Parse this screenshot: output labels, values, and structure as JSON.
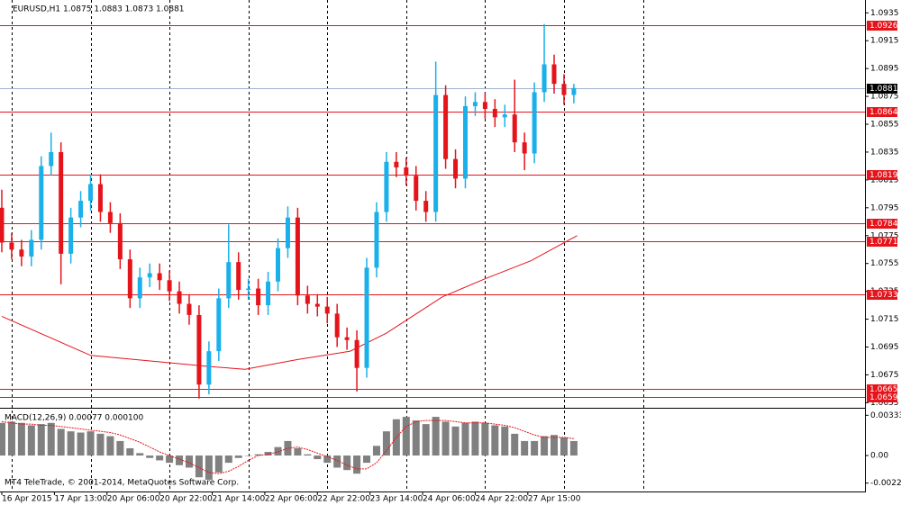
{
  "chart_data": [
    {
      "type": "candlestick",
      "title": "EURUSD,H1  1.0875 1.0883 1.0873 1.0881",
      "up_color": "#1ab0ea",
      "down_color": "#e5141b",
      "x": [
        0,
        3,
        6,
        9,
        12,
        15,
        18,
        21,
        24,
        27,
        30,
        33,
        36,
        39,
        42,
        45,
        48,
        51,
        54,
        57,
        60,
        63,
        66,
        69,
        72,
        75,
        78,
        81,
        84,
        87,
        90,
        93,
        96,
        99,
        102,
        105,
        108,
        111,
        114,
        117,
        120,
        123,
        126,
        129,
        132,
        135,
        138,
        141,
        144,
        147,
        150,
        153,
        156,
        159,
        162,
        165,
        168,
        171,
        174
      ],
      "open": [
        1.0795,
        1.077,
        1.0765,
        1.076,
        1.0772,
        1.0825,
        1.0835,
        1.0762,
        1.0788,
        1.08,
        1.0812,
        1.0792,
        1.0784,
        1.0758,
        1.073,
        1.0745,
        1.0748,
        1.0743,
        1.0735,
        1.0726,
        1.0718,
        1.0668,
        1.0692,
        1.073,
        1.0756,
        1.0736,
        1.0737,
        1.0725,
        1.0742,
        1.0766,
        1.0788,
        1.0732,
        1.0726,
        1.0724,
        1.0719,
        1.0702,
        1.07,
        1.068,
        1.0752,
        1.0792,
        1.0828,
        1.0824,
        1.0818,
        1.08,
        1.0792,
        1.0876,
        1.083,
        1.0816,
        1.0868,
        1.0871,
        1.0866,
        1.086,
        1.0862,
        1.0842,
        1.0834,
        1.0878,
        1.0898,
        1.0884,
        1.0876
      ],
      "high": [
        1.0808,
        1.0777,
        1.0772,
        1.0779,
        1.0832,
        1.0849,
        1.0842,
        1.0795,
        1.0807,
        1.0819,
        1.0819,
        1.0799,
        1.0791,
        1.0765,
        1.0752,
        1.0755,
        1.0755,
        1.075,
        1.0742,
        1.0733,
        1.0725,
        1.0699,
        1.0737,
        1.0783,
        1.0763,
        1.0744,
        1.0744,
        1.0749,
        1.0773,
        1.0796,
        1.0795,
        1.0739,
        1.0733,
        1.0731,
        1.0726,
        1.0709,
        1.0707,
        1.0759,
        1.0799,
        1.0835,
        1.0835,
        1.0831,
        1.0825,
        1.0807,
        1.09,
        1.0883,
        1.0837,
        1.0875,
        1.0878,
        1.0878,
        1.0873,
        1.0869,
        1.0887,
        1.0849,
        1.0885,
        1.0927,
        1.0905,
        1.0891,
        1.0884
      ],
      "low": [
        1.0763,
        1.0758,
        1.0753,
        1.0753,
        1.0765,
        1.0818,
        1.074,
        1.0755,
        1.0781,
        1.0793,
        1.0785,
        1.0777,
        1.0751,
        1.0723,
        1.0723,
        1.0738,
        1.0736,
        1.0728,
        1.0719,
        1.0711,
        1.0658,
        1.0661,
        1.0685,
        1.0723,
        1.0729,
        1.0729,
        1.0718,
        1.0718,
        1.0735,
        1.0759,
        1.0725,
        1.0719,
        1.0717,
        1.0712,
        1.0695,
        1.0693,
        1.0663,
        1.0673,
        1.0745,
        1.0785,
        1.0817,
        1.0811,
        1.0793,
        1.0785,
        1.0785,
        1.0823,
        1.0809,
        1.0809,
        1.0861,
        1.0859,
        1.0853,
        1.0853,
        1.0835,
        1.0822,
        1.0827,
        1.0871,
        1.0877,
        1.0869,
        1.087
      ],
      "close": [
        1.077,
        1.0765,
        1.076,
        1.0772,
        1.0825,
        1.0835,
        1.0762,
        1.0788,
        1.08,
        1.0812,
        1.0792,
        1.0784,
        1.0758,
        1.073,
        1.0745,
        1.0748,
        1.0743,
        1.0735,
        1.0726,
        1.0718,
        1.0668,
        1.0692,
        1.073,
        1.0756,
        1.0736,
        1.0737,
        1.0725,
        1.0742,
        1.0766,
        1.0788,
        1.0732,
        1.0726,
        1.0724,
        1.0719,
        1.0702,
        1.07,
        1.068,
        1.0752,
        1.0792,
        1.0828,
        1.0824,
        1.0818,
        1.08,
        1.0792,
        1.0876,
        1.083,
        1.0816,
        1.0868,
        1.0871,
        1.0866,
        1.086,
        1.0862,
        1.0842,
        1.0834,
        1.0878,
        1.0898,
        1.0884,
        1.0876,
        1.0881
      ],
      "moving_average": {
        "color": "#e5141b",
        "x": [
          0,
          27,
          63,
          74,
          90,
          106,
          117,
          134,
          147,
          161,
          175
        ],
        "values": [
          1.0717,
          1.0689,
          1.0681,
          1.0679,
          1.0686,
          1.0692,
          1.0705,
          1.0731,
          1.0744,
          1.0757,
          1.0775
        ]
      },
      "levels": {
        "color": "#e5141b",
        "values": [
          1.0926,
          1.0864,
          1.0819,
          1.0784,
          1.0771,
          1.0733,
          1.0665,
          1.0659
        ]
      },
      "current_price": {
        "color": "#9fb4cf",
        "value": 1.0881
      },
      "xlim": [
        0,
        262
      ],
      "ylim": [
        1.0652,
        1.0941
      ],
      "yticks": [
        1.0935,
        1.0915,
        1.0895,
        1.0875,
        1.0855,
        1.0835,
        1.0815,
        1.0795,
        1.0775,
        1.0755,
        1.0735,
        1.0715,
        1.0695,
        1.0675,
        1.0655
      ],
      "xticks": [
        {
          "value": 0,
          "label": "16 Apr 2015"
        },
        {
          "value": 16,
          "label": "17 Apr 13:00"
        },
        {
          "value": 32,
          "label": "20 Apr 06:00"
        },
        {
          "value": 48,
          "label": "20 Apr 22:00"
        },
        {
          "value": 64,
          "label": "21 Apr 14:00"
        },
        {
          "value": 80,
          "label": "22 Apr 06:00"
        },
        {
          "value": 96,
          "label": "22 Apr 22:00"
        },
        {
          "value": 112,
          "label": "23 Apr 14:00"
        },
        {
          "value": 128,
          "label": "24 Apr 06:00"
        },
        {
          "value": 144,
          "label": "24 Apr 22:00"
        },
        {
          "value": 160,
          "label": "27 Apr 15:00"
        }
      ],
      "xgrid": [
        3,
        27,
        51,
        75,
        99,
        123,
        147,
        171,
        195
      ]
    },
    {
      "type": "macd",
      "label": "MACD(12,26,9) 0.00077 0.000100",
      "watermark": "MT4 TeleTrade, © 2001-2014, MetaQuotes Software Corp.",
      "x": [
        0,
        3,
        6,
        9,
        12,
        15,
        18,
        21,
        24,
        27,
        30,
        33,
        36,
        39,
        42,
        45,
        48,
        51,
        54,
        57,
        60,
        63,
        66,
        69,
        72,
        75,
        78,
        81,
        84,
        87,
        90,
        93,
        96,
        99,
        102,
        105,
        108,
        111,
        114,
        117,
        120,
        123,
        126,
        129,
        132,
        135,
        138,
        141,
        144,
        147,
        150,
        153,
        156,
        159,
        162,
        165,
        168,
        171,
        174
      ],
      "series": [
        {
          "name": "MACD",
          "color": "#808080",
          "values": [
            0.0027,
            0.0028,
            0.0027,
            0.0025,
            0.0026,
            0.0027,
            0.0022,
            0.002,
            0.0019,
            0.002,
            0.0018,
            0.0016,
            0.0012,
            0.0006,
            0.0002,
            -0.0002,
            -0.0004,
            -0.0006,
            -0.0008,
            -0.001,
            -0.0018,
            -0.002,
            -0.0014,
            -0.0006,
            -0.0002,
            0.0,
            0.0001,
            0.0003,
            0.0007,
            0.0012,
            0.0006,
            0.0001,
            -0.0003,
            -0.0006,
            -0.001,
            -0.0012,
            -0.0015,
            -0.0006,
            0.0008,
            0.002,
            0.003,
            0.0032,
            0.0029,
            0.0026,
            0.0032,
            0.0028,
            0.0024,
            0.0027,
            0.0028,
            0.0027,
            0.0025,
            0.0024,
            0.0018,
            0.0012,
            0.0012,
            0.0016,
            0.0017,
            0.0015,
            0.0012
          ]
        },
        {
          "name": "Signal",
          "color": "#e5141b",
          "values": [
            0.0028,
            0.0027,
            0.0026,
            0.0026,
            0.0025,
            0.0025,
            0.0024,
            0.0023,
            0.0022,
            0.0021,
            0.002,
            0.0019,
            0.0017,
            0.0014,
            0.0011,
            0.0007,
            0.0003,
            0.0,
            -0.0003,
            -0.0006,
            -0.001,
            -0.0014,
            -0.0015,
            -0.0013,
            -0.0009,
            -0.0004,
            0.0,
            0.0001,
            0.0003,
            0.0006,
            0.0007,
            0.0005,
            0.0002,
            -0.0001,
            -0.0004,
            -0.0008,
            -0.0011,
            -0.0011,
            -0.0006,
            0.0004,
            0.0015,
            0.0024,
            0.0028,
            0.0029,
            0.0029,
            0.0029,
            0.0028,
            0.0027,
            0.0027,
            0.0027,
            0.0026,
            0.0025,
            0.0023,
            0.002,
            0.0017,
            0.0015,
            0.0015,
            0.0015,
            0.0014
          ]
        }
      ],
      "xlim": [
        0,
        262
      ],
      "ylim": [
        -0.0029,
        0.0038
      ],
      "yticks": [
        0.00333,
        {
          "value": 0,
          "label": "0.00"
        },
        -0.00228
      ]
    }
  ]
}
